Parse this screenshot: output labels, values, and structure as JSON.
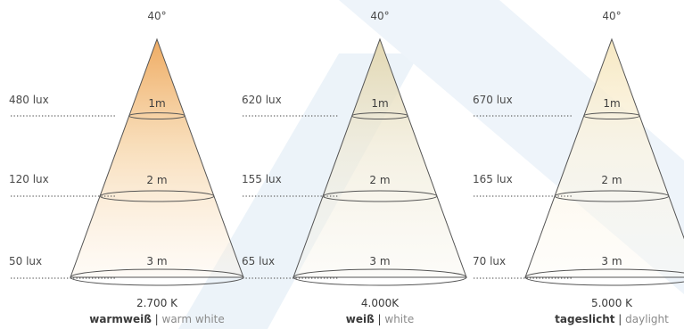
{
  "colors": {
    "watermark": "#e9f1f8",
    "outline": "#555555",
    "warm_top": "#f0b46a",
    "white_top": "#e6dcb8",
    "daylight_top": "#f6ebc8"
  },
  "cones": [
    {
      "angle": "40°",
      "lux": [
        "480 lux",
        "120 lux",
        "50 lux"
      ],
      "distances": [
        "1m",
        "2 m",
        "3 m"
      ],
      "kelvin": "2.700 K",
      "caption_de": "warmweiß",
      "caption_sep": " | ",
      "caption_en": "warm white"
    },
    {
      "angle": "40°",
      "lux": [
        "620 lux",
        "155 lux",
        "65 lux"
      ],
      "distances": [
        "1m",
        "2 m",
        "3 m"
      ],
      "kelvin": "4.000K",
      "caption_de": "weiß",
      "caption_sep": " | ",
      "caption_en": "white"
    },
    {
      "angle": "40°",
      "lux": [
        "670 lux",
        "165 lux",
        "70 lux"
      ],
      "distances": [
        "1m",
        "2 m",
        "3 m"
      ],
      "kelvin": "5.000 K",
      "caption_de": "tageslicht",
      "caption_sep": " | ",
      "caption_en": "daylight"
    }
  ]
}
